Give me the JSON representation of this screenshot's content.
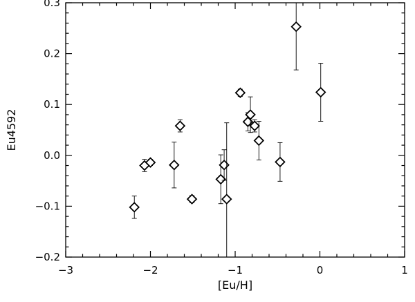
{
  "chart_data": {
    "type": "scatter",
    "xlabel": "[Eu/H]",
    "ylabel": "Eu4592",
    "xlim": [
      -3,
      1
    ],
    "ylim": [
      -0.2,
      0.3
    ],
    "xticks": [
      -3,
      -2,
      -1,
      0,
      1
    ],
    "xtick_labels": [
      "−3",
      "−2",
      "−1",
      "0",
      "1"
    ],
    "yticks": [
      -0.2,
      -0.1,
      0.0,
      0.1,
      0.2,
      0.3
    ],
    "ytick_labels": [
      "−0.2",
      "−0.1",
      "0.0",
      "0.1",
      "0.2",
      "0.3"
    ],
    "marker": "diamond-open",
    "color": "#000000",
    "grid": false,
    "points": [
      {
        "x": -2.19,
        "y": -0.102,
        "err": 0.022
      },
      {
        "x": -2.07,
        "y": -0.02,
        "err": 0.012
      },
      {
        "x": -2.0,
        "y": -0.014,
        "err": 0.006
      },
      {
        "x": -1.72,
        "y": -0.019,
        "err": 0.045
      },
      {
        "x": -1.65,
        "y": 0.058,
        "err": 0.012
      },
      {
        "x": -1.51,
        "y": -0.086,
        "err": 0.007
      },
      {
        "x": -1.17,
        "y": -0.047,
        "err": 0.048
      },
      {
        "x": -1.13,
        "y": -0.019,
        "err": 0.03
      },
      {
        "x": -1.1,
        "y": -0.086,
        "err": 0.15
      },
      {
        "x": -0.94,
        "y": 0.123,
        "err": 0.007
      },
      {
        "x": -0.85,
        "y": 0.066,
        "err": 0.018
      },
      {
        "x": -0.82,
        "y": 0.08,
        "err": 0.035
      },
      {
        "x": -0.77,
        "y": 0.058,
        "err": 0.012
      },
      {
        "x": -0.72,
        "y": 0.029,
        "err": 0.038
      },
      {
        "x": -0.47,
        "y": -0.013,
        "err": 0.038
      },
      {
        "x": -0.28,
        "y": 0.253,
        "err": 0.085
      },
      {
        "x": 0.01,
        "y": 0.124,
        "err": 0.057
      }
    ]
  }
}
